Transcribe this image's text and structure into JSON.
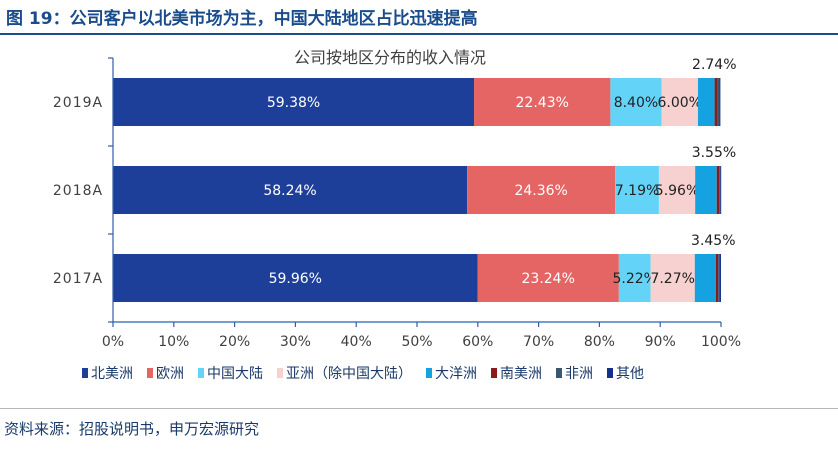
{
  "header": {
    "title": "图 19：公司客户以北美市场为主，中国大陆地区占比迅速提高"
  },
  "footer": {
    "source": "资料来源：招股说明书，申万宏源研究"
  },
  "chart_data": {
    "type": "bar",
    "orientation": "horizontal",
    "stacked": true,
    "title": "公司按地区分布的收入情况",
    "categories": [
      "2019A",
      "2018A",
      "2017A"
    ],
    "xlim": [
      0,
      100
    ],
    "x_ticks": [
      "0%",
      "10%",
      "20%",
      "30%",
      "40%",
      "50%",
      "60%",
      "70%",
      "80%",
      "90%",
      "100%"
    ],
    "legend_position": "bottom",
    "grid": false,
    "series": [
      {
        "name": "北美洲",
        "color": "#1e3f99",
        "values": [
          59.38,
          58.24,
          59.96
        ],
        "labels": [
          "59.38%",
          "58.24%",
          "59.96%"
        ],
        "label_color": "#ffffff"
      },
      {
        "name": "欧洲",
        "color": "#e46564",
        "values": [
          22.43,
          24.36,
          23.24
        ],
        "labels": [
          "22.43%",
          "24.36%",
          "23.24%"
        ],
        "label_color": "#ffffff"
      },
      {
        "name": "中国大陆",
        "color": "#63d4f8",
        "values": [
          8.4,
          7.19,
          5.22
        ],
        "labels": [
          "8.40%",
          "7.19%",
          "5.22%"
        ],
        "label_color": "#222222"
      },
      {
        "name": "亚洲（除中国大陆）",
        "color": "#f7d1d0",
        "values": [
          6.0,
          5.96,
          7.27
        ],
        "labels": [
          "6.00%",
          "5.96%",
          "7.27%"
        ],
        "label_color": "#222222"
      },
      {
        "name": "大洋洲",
        "color": "#14a3e0",
        "values": [
          2.74,
          3.55,
          3.45
        ],
        "labels": [
          "2.74%",
          "3.55%",
          "3.45%"
        ],
        "label_color": "#222222",
        "label_outside": true
      },
      {
        "name": "南美洲",
        "color": "#8b1a1a",
        "values": [
          0.5,
          0.4,
          0.4
        ],
        "labels": [],
        "label_color": "#222222"
      },
      {
        "name": "非洲",
        "color": "#3b5673",
        "values": [
          0.3,
          0.2,
          0.3
        ],
        "labels": [],
        "label_color": "#222222"
      },
      {
        "name": "其他",
        "color": "#12318c",
        "values": [
          0.15,
          0.1,
          0.16
        ],
        "labels": [],
        "label_color": "#222222"
      }
    ]
  }
}
